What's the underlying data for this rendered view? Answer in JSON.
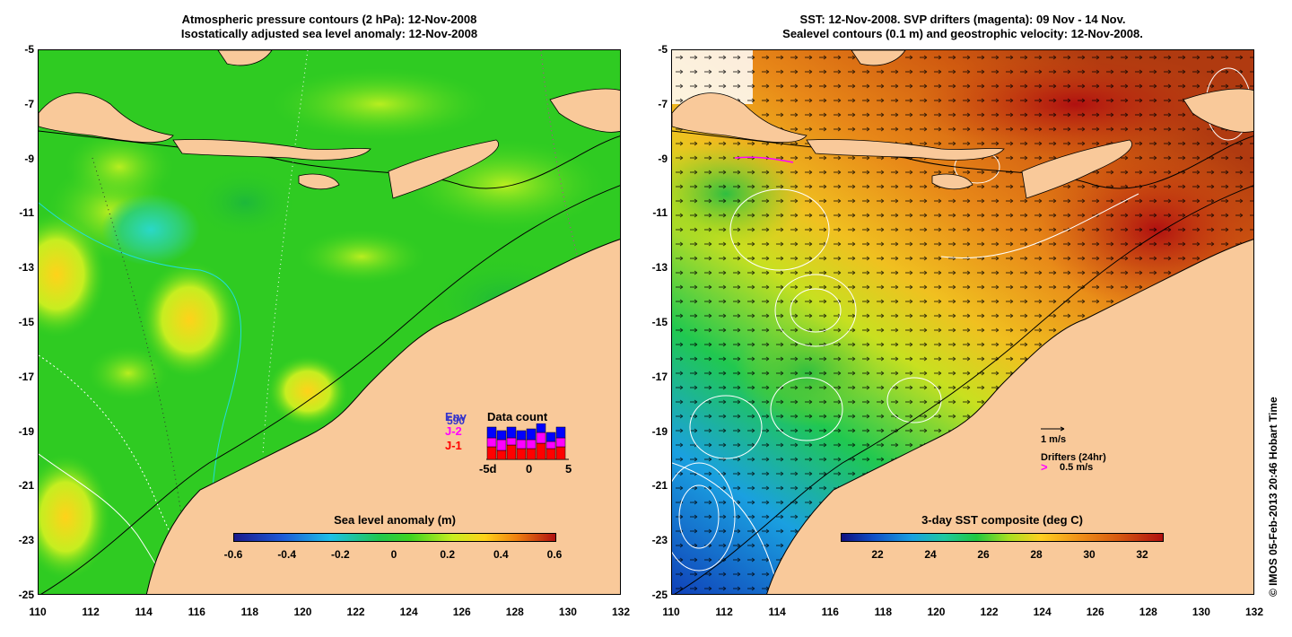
{
  "left_panel": {
    "title_line1": "Atmospheric pressure contours (2 hPa): 12-Nov-2008",
    "title_line2": "Isostatically adjusted sea level anomaly: 12-Nov-2008",
    "colorbar": {
      "title": "Sea level anomaly (m)",
      "ticks": [
        "-0.6",
        "-0.4",
        "-0.2",
        "0",
        "0.2",
        "0.4",
        "0.6"
      ]
    },
    "data_count": {
      "title": "Data count",
      "series_labels": [
        "Env",
        "J-2",
        "J-1"
      ],
      "series_overlay": "590",
      "series_colors": [
        "#0000ff",
        "#ff00ff",
        "#ff0000"
      ],
      "x_ticks": [
        "-5d",
        "0",
        "5"
      ]
    }
  },
  "right_panel": {
    "title_line1": "SST: 12-Nov-2008. SVP drifters (magenta): 09 Nov - 14 Nov.",
    "title_line2": "Sealevel contours (0.1 m) and geostrophic velocity: 12-Nov-2008.",
    "colorbar": {
      "title": "3-day SST composite (deg C)",
      "ticks": [
        "22",
        "24",
        "26",
        "28",
        "30",
        "32"
      ]
    },
    "velocity_scale": "1 m/s",
    "drifters_label": "Drifters (24hr)",
    "drifter_scale": "0.5 m/s"
  },
  "axes": {
    "y_ticks": [
      "-5",
      "-7",
      "-9",
      "-11",
      "-13",
      "-15",
      "-17",
      "-19",
      "-21",
      "-23",
      "-25"
    ],
    "x_ticks": [
      "110",
      "112",
      "114",
      "116",
      "118",
      "120",
      "122",
      "124",
      "126",
      "128",
      "130",
      "132"
    ]
  },
  "credit": "© IMOS 05-Feb-2013 20:46 Hobart Time",
  "colors": {
    "land": "#f9c99a",
    "ocean_anomaly_base": "#2ecc22",
    "sst_warm": "#d95a0a",
    "sst_cool": "#1a6ad0"
  }
}
